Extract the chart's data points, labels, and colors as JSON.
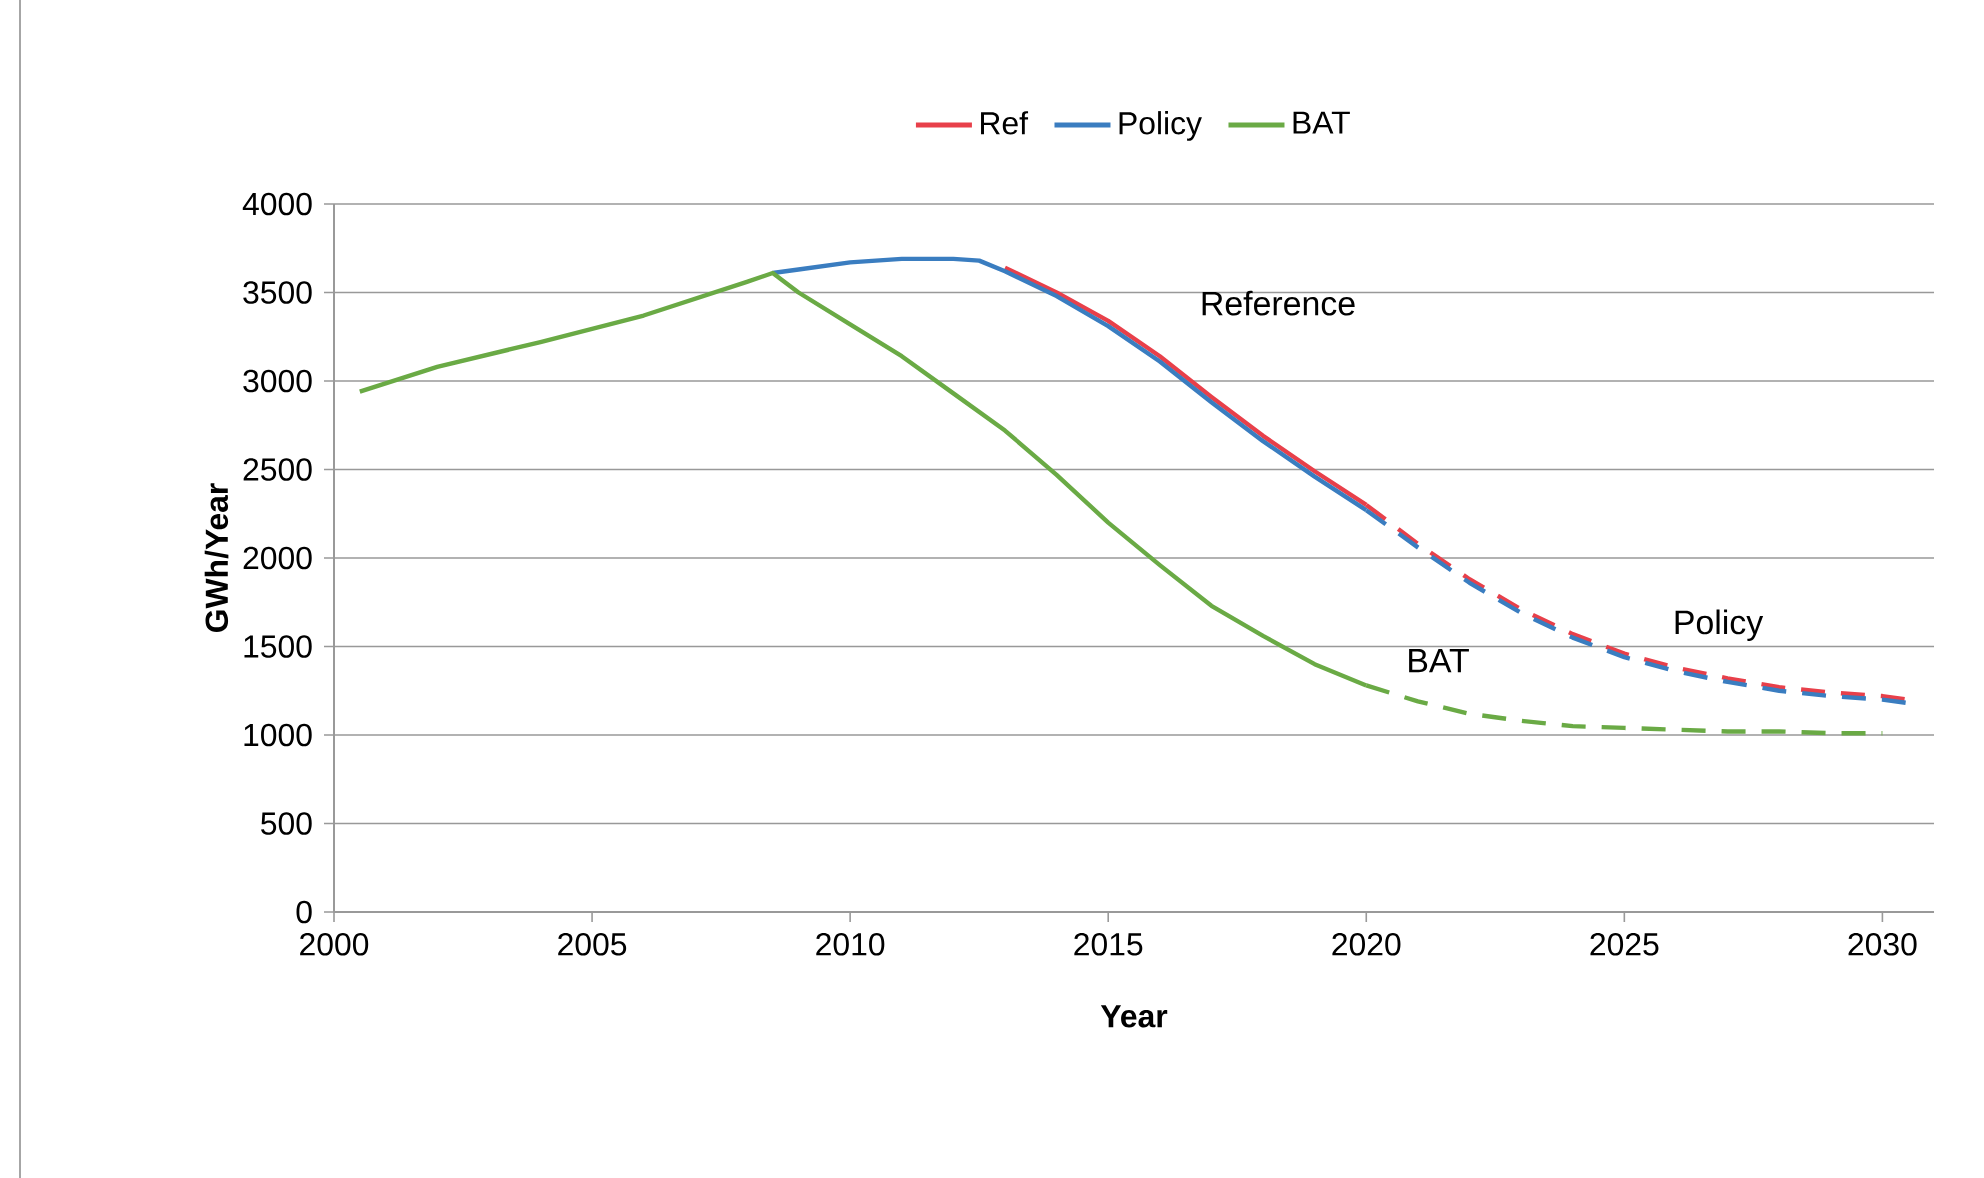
{
  "chart_data": {
    "type": "line",
    "xlabel": "Year",
    "ylabel": "GWh/Year",
    "xlim": [
      2000,
      2031
    ],
    "ylim": [
      0,
      4000
    ],
    "xticks": [
      2000,
      2005,
      2010,
      2015,
      2020,
      2025,
      2030
    ],
    "yticks": [
      0,
      500,
      1000,
      1500,
      2000,
      2500,
      3000,
      3500,
      4000
    ],
    "grid": "y",
    "legend": "top",
    "marker": "none",
    "annotations": [
      "Reference",
      "Policy",
      "BAT"
    ],
    "series": [
      {
        "name": "Ref",
        "color": "#e8404a",
        "line_style": "solid",
        "x": [
          2013,
          2014,
          2015,
          2016,
          2017,
          2018,
          2019,
          2020
        ],
        "values": [
          3640,
          3500,
          3340,
          3140,
          2910,
          2690,
          2490,
          2300
        ]
      },
      {
        "name": "Policy",
        "color": "#3a7dc0",
        "line_style": "solid",
        "x": [
          2008.5,
          2009,
          2010,
          2011,
          2012,
          2012.5,
          2013,
          2014,
          2015,
          2016,
          2017,
          2018,
          2019,
          2020
        ],
        "values": [
          3610,
          3630,
          3670,
          3690,
          3690,
          3680,
          3620,
          3480,
          3310,
          3110,
          2880,
          2660,
          2460,
          2270
        ]
      },
      {
        "name": "BAT",
        "color": "#6aaa45",
        "line_style": "solid",
        "x": [
          2000.5,
          2002,
          2004,
          2006,
          2008,
          2008.5,
          2009,
          2010,
          2011,
          2012,
          2013,
          2014,
          2015,
          2016,
          2017,
          2018,
          2019,
          2020
        ],
        "values": [
          2940,
          3080,
          3220,
          3370,
          3560,
          3610,
          3500,
          3320,
          3140,
          2930,
          2720,
          2470,
          2200,
          1960,
          1730,
          1560,
          1400,
          1280
        ]
      },
      {
        "color": "#e8404a",
        "line_style": "dashed",
        "x": [
          2020,
          2021,
          2022,
          2023,
          2024,
          2025,
          2026,
          2027,
          2028,
          2029,
          2030,
          2030.5
        ],
        "values": [
          2300,
          2080,
          1880,
          1710,
          1570,
          1460,
          1380,
          1320,
          1270,
          1240,
          1220,
          1200
        ]
      },
      {
        "color": "#3a7dc0",
        "line_style": "dashed",
        "x": [
          2020,
          2021,
          2022,
          2023,
          2024,
          2025,
          2026,
          2027,
          2028,
          2029,
          2030,
          2030.5
        ],
        "values": [
          2270,
          2060,
          1860,
          1690,
          1550,
          1440,
          1360,
          1300,
          1250,
          1220,
          1200,
          1180
        ]
      },
      {
        "color": "#6aaa45",
        "line_style": "dashed",
        "x": [
          2020,
          2021,
          2022,
          2023,
          2024,
          2025,
          2026,
          2027,
          2028,
          2029,
          2030
        ],
        "values": [
          1280,
          1190,
          1120,
          1080,
          1050,
          1040,
          1030,
          1020,
          1020,
          1010,
          1010
        ]
      }
    ]
  }
}
